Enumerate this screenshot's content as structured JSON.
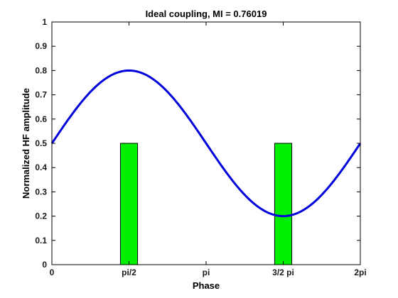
{
  "chart_data": {
    "type": "bar+line",
    "title": "Ideal coupling, MI = 0.76019",
    "xlabel": "Phase",
    "ylabel": "Normalized HF amplitude",
    "xlim": [
      0,
      6.283185307
    ],
    "ylim": [
      0,
      1
    ],
    "x_ticks": [
      {
        "value": 0,
        "label": "0"
      },
      {
        "value": 1.570796327,
        "label": "pi/2"
      },
      {
        "value": 3.141592654,
        "label": "pi"
      },
      {
        "value": 4.71238898,
        "label": "3/2 pi"
      },
      {
        "value": 6.283185307,
        "label": "2pi"
      }
    ],
    "y_ticks": [
      {
        "value": 0,
        "label": "0"
      },
      {
        "value": 0.1,
        "label": "0.1"
      },
      {
        "value": 0.2,
        "label": "0.2"
      },
      {
        "value": 0.3,
        "label": "0.3"
      },
      {
        "value": 0.4,
        "label": "0.4"
      },
      {
        "value": 0.5,
        "label": "0.5"
      },
      {
        "value": 0.6,
        "label": "0.6"
      },
      {
        "value": 0.7,
        "label": "0.7"
      },
      {
        "value": 0.8,
        "label": "0.8"
      },
      {
        "value": 0.9,
        "label": "0.9"
      },
      {
        "value": 1,
        "label": "1"
      }
    ],
    "bars": [
      {
        "center": 1.570796327,
        "width": 0.3491,
        "value": 0.5
      },
      {
        "center": 4.71238898,
        "width": 0.3491,
        "value": 0.5
      }
    ],
    "curve": {
      "name": "ideal coupling",
      "function": "0.5 + 0.3*sin(x)",
      "offset": 0.5,
      "amplitude": 0.3,
      "samples": 120
    },
    "colors": {
      "bar_fill": "#00ee00",
      "bar_edge": "#000000",
      "curve": "#0000dd",
      "axis": "#000000"
    },
    "grid": false
  }
}
